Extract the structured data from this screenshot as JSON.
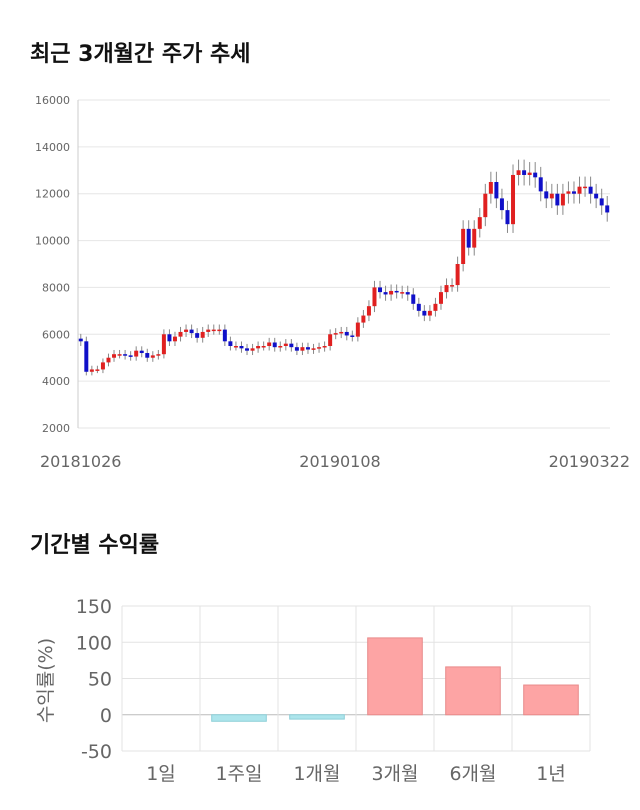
{
  "section1": {
    "title": "최근 3개월간 주가 추세"
  },
  "section2": {
    "title": "기간별 수익률"
  },
  "chart_data": [
    {
      "type": "candlestick",
      "title": "최근 3개월간 주가 추세",
      "ylim": [
        2000,
        16000
      ],
      "y_ticks": [
        "16000",
        "14000",
        "12000",
        "10000",
        "8000",
        "6000",
        "4000",
        "2000"
      ],
      "x_ticks": [
        "20181026",
        "20190108",
        "20190322"
      ],
      "colors": {
        "up": "#e02020",
        "down": "#1010c8",
        "wick": "#888888",
        "grid": "#e6e6e6"
      },
      "close": [
        5700,
        4400,
        4500,
        4500,
        4800,
        5000,
        5150,
        5150,
        5100,
        5050,
        5300,
        5200,
        5000,
        5100,
        5150,
        6000,
        5700,
        5900,
        6100,
        6200,
        6050,
        5850,
        6100,
        6200,
        6200,
        6200,
        5700,
        5500,
        5500,
        5400,
        5300,
        5400,
        5500,
        5500,
        5650,
        5450,
        5500,
        5600,
        5450,
        5300,
        5450,
        5350,
        5400,
        5450,
        5500,
        6000,
        6050,
        6100,
        5950,
        5900,
        6500,
        6800,
        7200,
        8000,
        7800,
        7700,
        7850,
        7800,
        7800,
        7700,
        7300,
        7000,
        6800,
        7000,
        7300,
        7800,
        8100,
        8100,
        9000,
        10500,
        9700,
        10500,
        11000,
        12000,
        12500,
        11800,
        11300,
        10700,
        12800,
        13000,
        12800,
        12900,
        12700,
        12100,
        11800,
        12000,
        11500,
        12000,
        12100,
        12000,
        12300,
        12300,
        12000,
        11800,
        11500,
        11200
      ]
    },
    {
      "type": "bar",
      "title": "기간별 수익률",
      "ylabel": "수익률(%)",
      "categories": [
        "1일",
        "1주일",
        "1개월",
        "3개월",
        "6개월",
        "1년"
      ],
      "values": [
        0,
        -9,
        -6,
        106,
        66,
        41
      ],
      "ylim": [
        -50,
        150
      ],
      "y_ticks": [
        "150",
        "100",
        "50",
        "0",
        "-50"
      ],
      "colors": {
        "positive": "#fda4a4",
        "positive_edge": "#e88a8a",
        "negative": "#ade5ec",
        "negative_edge": "#8ccfd8",
        "grid": "#e3e3e3",
        "zero_line": "#bbbbbb"
      }
    }
  ]
}
